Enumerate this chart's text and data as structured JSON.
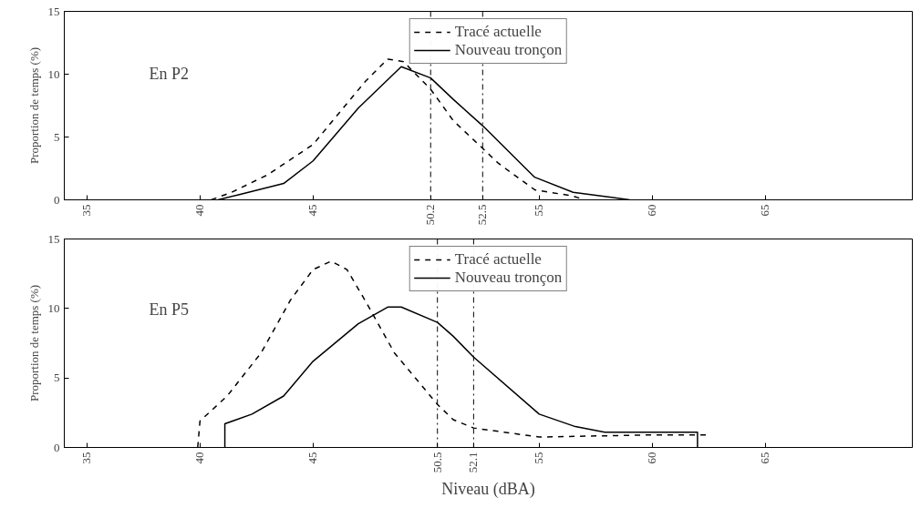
{
  "chart_data": [
    {
      "type": "line",
      "ylabel": "Proportion de temps (%)",
      "annotations": [
        "En P2"
      ],
      "xlim": [
        34,
        71.5
      ],
      "ylim": [
        0,
        15
      ],
      "xticks": [
        35,
        40,
        45,
        50.2,
        52.5,
        55,
        60,
        65
      ],
      "yticks": [
        0,
        5,
        10,
        15
      ],
      "grid": false,
      "legend": "top",
      "ref_lines": [
        {
          "axis": "x",
          "value": 50.2,
          "line_style": "dashdot",
          "color": "#000000"
        },
        {
          "axis": "x",
          "value": 52.5,
          "line_style": "dashdot",
          "color": "#000000"
        }
      ],
      "series": [
        {
          "name": "Tracé actuelle",
          "color": "#000000",
          "line_style": "dashed",
          "x": [
            40.5,
            41.4,
            43.0,
            45.0,
            46.1,
            47.3,
            48.3,
            49.0,
            50.2,
            51.2,
            52.5,
            53.2,
            54.8,
            56.5,
            57.0
          ],
          "values": [
            0,
            0.6,
            2.0,
            4.4,
            6.8,
            9.4,
            11.2,
            11.0,
            8.8,
            6.3,
            4.1,
            2.9,
            0.8,
            0.3,
            0
          ]
        },
        {
          "name": "Nouveau tronçon",
          "color": "#000000",
          "line_style": "solid",
          "x": [
            40.8,
            41.7,
            43.7,
            45.0,
            47.0,
            48.9,
            50.2,
            51.2,
            52.5,
            54.8,
            56.5,
            58.2,
            59.0
          ],
          "values": [
            0,
            0.4,
            1.3,
            3.1,
            7.3,
            10.6,
            9.7,
            8.0,
            5.9,
            1.8,
            0.6,
            0.2,
            0
          ]
        }
      ]
    },
    {
      "type": "line",
      "ylabel": "Proportion de temps (%)",
      "xlabel": "Niveau (dBA)",
      "annotations": [
        "En P5"
      ],
      "xlim": [
        34,
        71.5
      ],
      "ylim": [
        0,
        15
      ],
      "xticks": [
        35,
        40,
        45,
        50.5,
        52.1,
        55,
        60,
        65
      ],
      "yticks": [
        0,
        5,
        10,
        15
      ],
      "grid": false,
      "legend": "top",
      "ref_lines": [
        {
          "axis": "x",
          "value": 50.5,
          "line_style": "dashdot",
          "color": "#000000"
        },
        {
          "axis": "x",
          "value": 52.1,
          "line_style": "dashdot",
          "color": "#000000"
        }
      ],
      "series": [
        {
          "name": "Tracé actuelle",
          "color": "#000000",
          "line_style": "dashed",
          "x": [
            39.9,
            40.0,
            41.2,
            42.7,
            44.0,
            45.0,
            45.8,
            46.5,
            47.4,
            48.6,
            50.5,
            51.2,
            52.1,
            55.0,
            59.9,
            62.4
          ],
          "values": [
            0,
            1.9,
            3.7,
            6.8,
            10.6,
            12.8,
            13.4,
            12.8,
            10.3,
            6.8,
            3.1,
            2.0,
            1.4,
            0.75,
            0.9,
            0.9
          ]
        },
        {
          "name": "Nouveau tronçon",
          "color": "#000000",
          "line_style": "solid",
          "x": [
            41.1,
            41.1,
            42.3,
            43.7,
            45.0,
            47.0,
            48.3,
            48.9,
            50.5,
            51.2,
            52.1,
            55.0,
            56.6,
            57.9,
            62.0,
            62.0
          ],
          "values": [
            0,
            1.7,
            2.4,
            3.7,
            6.2,
            8.9,
            10.1,
            10.1,
            9.0,
            8.0,
            6.5,
            2.4,
            1.5,
            1.1,
            1.1,
            0
          ]
        }
      ]
    }
  ]
}
